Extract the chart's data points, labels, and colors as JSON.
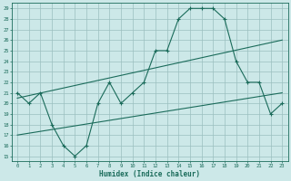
{
  "bg_color": "#cce8e8",
  "grid_color": "#9bbfbf",
  "line_color": "#1a6b5a",
  "xlabel": "Humidex (Indice chaleur)",
  "xlim": [
    -0.5,
    23.5
  ],
  "ylim": [
    14.5,
    29.5
  ],
  "xticks": [
    0,
    1,
    2,
    3,
    4,
    5,
    6,
    7,
    8,
    9,
    10,
    11,
    12,
    13,
    14,
    15,
    16,
    17,
    18,
    19,
    20,
    21,
    22,
    23
  ],
  "yticks": [
    15,
    16,
    17,
    18,
    19,
    20,
    21,
    22,
    23,
    24,
    25,
    26,
    27,
    28,
    29
  ],
  "zigzag_x": [
    0,
    1,
    2,
    3,
    4,
    5,
    6,
    7,
    8,
    9,
    10,
    11,
    12,
    13,
    14,
    15,
    16,
    17,
    18,
    19,
    20,
    21,
    22,
    23
  ],
  "zigzag_y": [
    21,
    20,
    21,
    18,
    16,
    15,
    16,
    20,
    22,
    20,
    21,
    22,
    25,
    25,
    28,
    29,
    29,
    29,
    28,
    24,
    22,
    22,
    19,
    20
  ],
  "line1_x": [
    0,
    23
  ],
  "line1_y": [
    20.5,
    26.0
  ],
  "line2_x": [
    0,
    23
  ],
  "line2_y": [
    17.0,
    21.0
  ],
  "tick_fontsize": 4.0,
  "xlabel_fontsize": 5.5,
  "linewidth": 0.8,
  "marker_size": 3.0
}
